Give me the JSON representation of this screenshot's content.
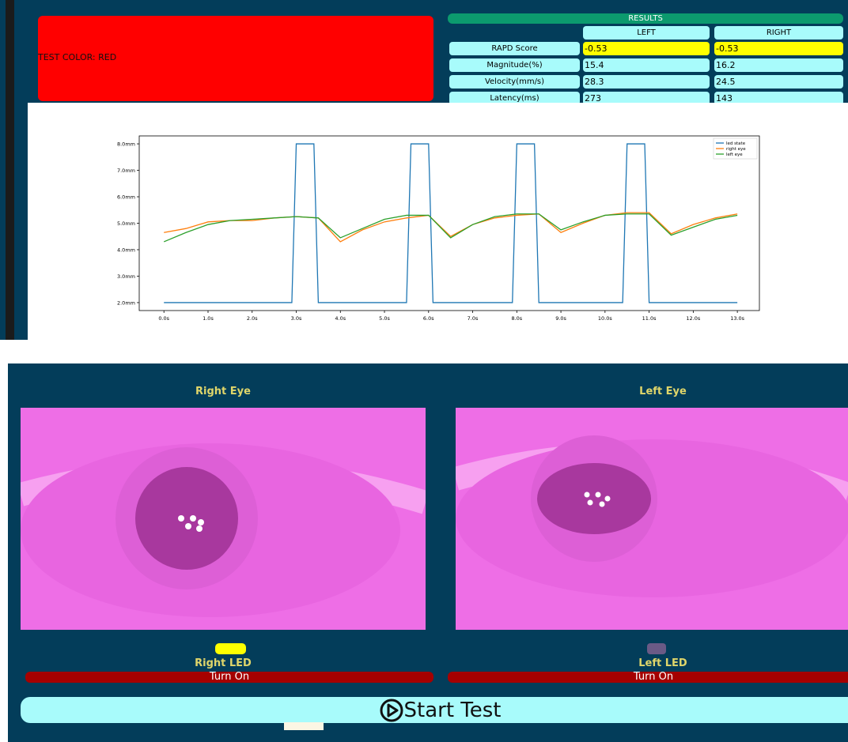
{
  "test_color": "TEST COLOR: RED",
  "results": {
    "title": "RESULTS",
    "columns": [
      "LEFT",
      "RIGHT"
    ],
    "rows": [
      {
        "label": "RAPD Score",
        "values": [
          -0.53,
          -0.53
        ]
      },
      {
        "label": "Magnitude(%)",
        "values": [
          15.4,
          16.2
        ]
      },
      {
        "label": "Velocity(mm/s)",
        "values": [
          28.3,
          24.5
        ]
      },
      {
        "label": "Latency(ms)",
        "values": [
          273,
          143
        ]
      }
    ]
  },
  "chart": {
    "type": "line",
    "x": [
      0,
      0.5,
      1,
      1.5,
      2,
      2.5,
      3,
      3.5,
      4,
      4.5,
      5,
      5.5,
      6,
      6.5,
      7,
      7.5,
      8,
      8.5,
      9,
      9.5,
      10,
      10.5,
      11,
      11.5,
      12,
      12.5,
      13
    ],
    "series": [
      {
        "name": "led state",
        "color": "#1f77b4",
        "x": [
          0,
          2.9,
          3.0,
          3.4,
          3.5,
          5.5,
          5.6,
          6.0,
          6.1,
          7.9,
          8.0,
          8.4,
          8.5,
          10.4,
          10.5,
          10.9,
          11.0,
          13.0
        ],
        "values": [
          2,
          2,
          8,
          8,
          2,
          2,
          8,
          8,
          2,
          2,
          8,
          8,
          2,
          2,
          8,
          8,
          2,
          2
        ]
      },
      {
        "name": "right eye",
        "color": "#ff7f0e",
        "values": [
          4.65,
          4.8,
          5.05,
          5.1,
          5.1,
          5.2,
          5.25,
          5.2,
          4.3,
          4.75,
          5.05,
          5.2,
          5.3,
          4.5,
          4.95,
          5.2,
          5.3,
          5.35,
          4.65,
          5.0,
          5.3,
          5.4,
          5.4,
          4.6,
          4.95,
          5.2,
          5.35
        ]
      },
      {
        "name": "left eye",
        "color": "#2ca02c",
        "values": [
          4.3,
          4.65,
          4.95,
          5.1,
          5.15,
          5.2,
          5.25,
          5.2,
          4.45,
          4.8,
          5.15,
          5.3,
          5.3,
          4.45,
          4.95,
          5.25,
          5.35,
          5.35,
          4.75,
          5.05,
          5.3,
          5.35,
          5.35,
          4.55,
          4.85,
          5.15,
          5.3
        ]
      }
    ],
    "xlim": [
      -0.56,
      13.5
    ],
    "ylim": [
      1.7,
      8.3
    ],
    "xticks": [
      {
        "value": 0,
        "label": "0.0s"
      },
      {
        "value": 1,
        "label": "1.0s"
      },
      {
        "value": 2,
        "label": "2.0s"
      },
      {
        "value": 3,
        "label": "3.0s"
      },
      {
        "value": 4,
        "label": "4.0s"
      },
      {
        "value": 5,
        "label": "5.0s"
      },
      {
        "value": 6,
        "label": "6.0s"
      },
      {
        "value": 7,
        "label": "7.0s"
      },
      {
        "value": 8,
        "label": "8.0s"
      },
      {
        "value": 9,
        "label": "9.0s"
      },
      {
        "value": 10,
        "label": "10.0s"
      },
      {
        "value": 11,
        "label": "11.0s"
      },
      {
        "value": 12,
        "label": "12.0s"
      },
      {
        "value": 13,
        "label": "13.0s"
      }
    ],
    "yticks": [
      {
        "value": 2,
        "label": "2.0mm"
      },
      {
        "value": 3,
        "label": "3.0mm"
      },
      {
        "value": 4,
        "label": "4.0mm"
      },
      {
        "value": 5,
        "label": "5.0mm"
      },
      {
        "value": 6,
        "label": "6.0mm"
      },
      {
        "value": 7,
        "label": "7.0mm"
      },
      {
        "value": 8,
        "label": "8.0mm"
      }
    ],
    "legend": "upper right"
  },
  "eyes": [
    {
      "title": "Right Eye",
      "led_label": "Right LED",
      "led_color": "#ffff00",
      "button": "Turn On"
    },
    {
      "title": "Left Eye",
      "led_label": "Left LED",
      "led_color": "#6a5a86",
      "button": "Turn On"
    }
  ],
  "start_button": "Start Test"
}
